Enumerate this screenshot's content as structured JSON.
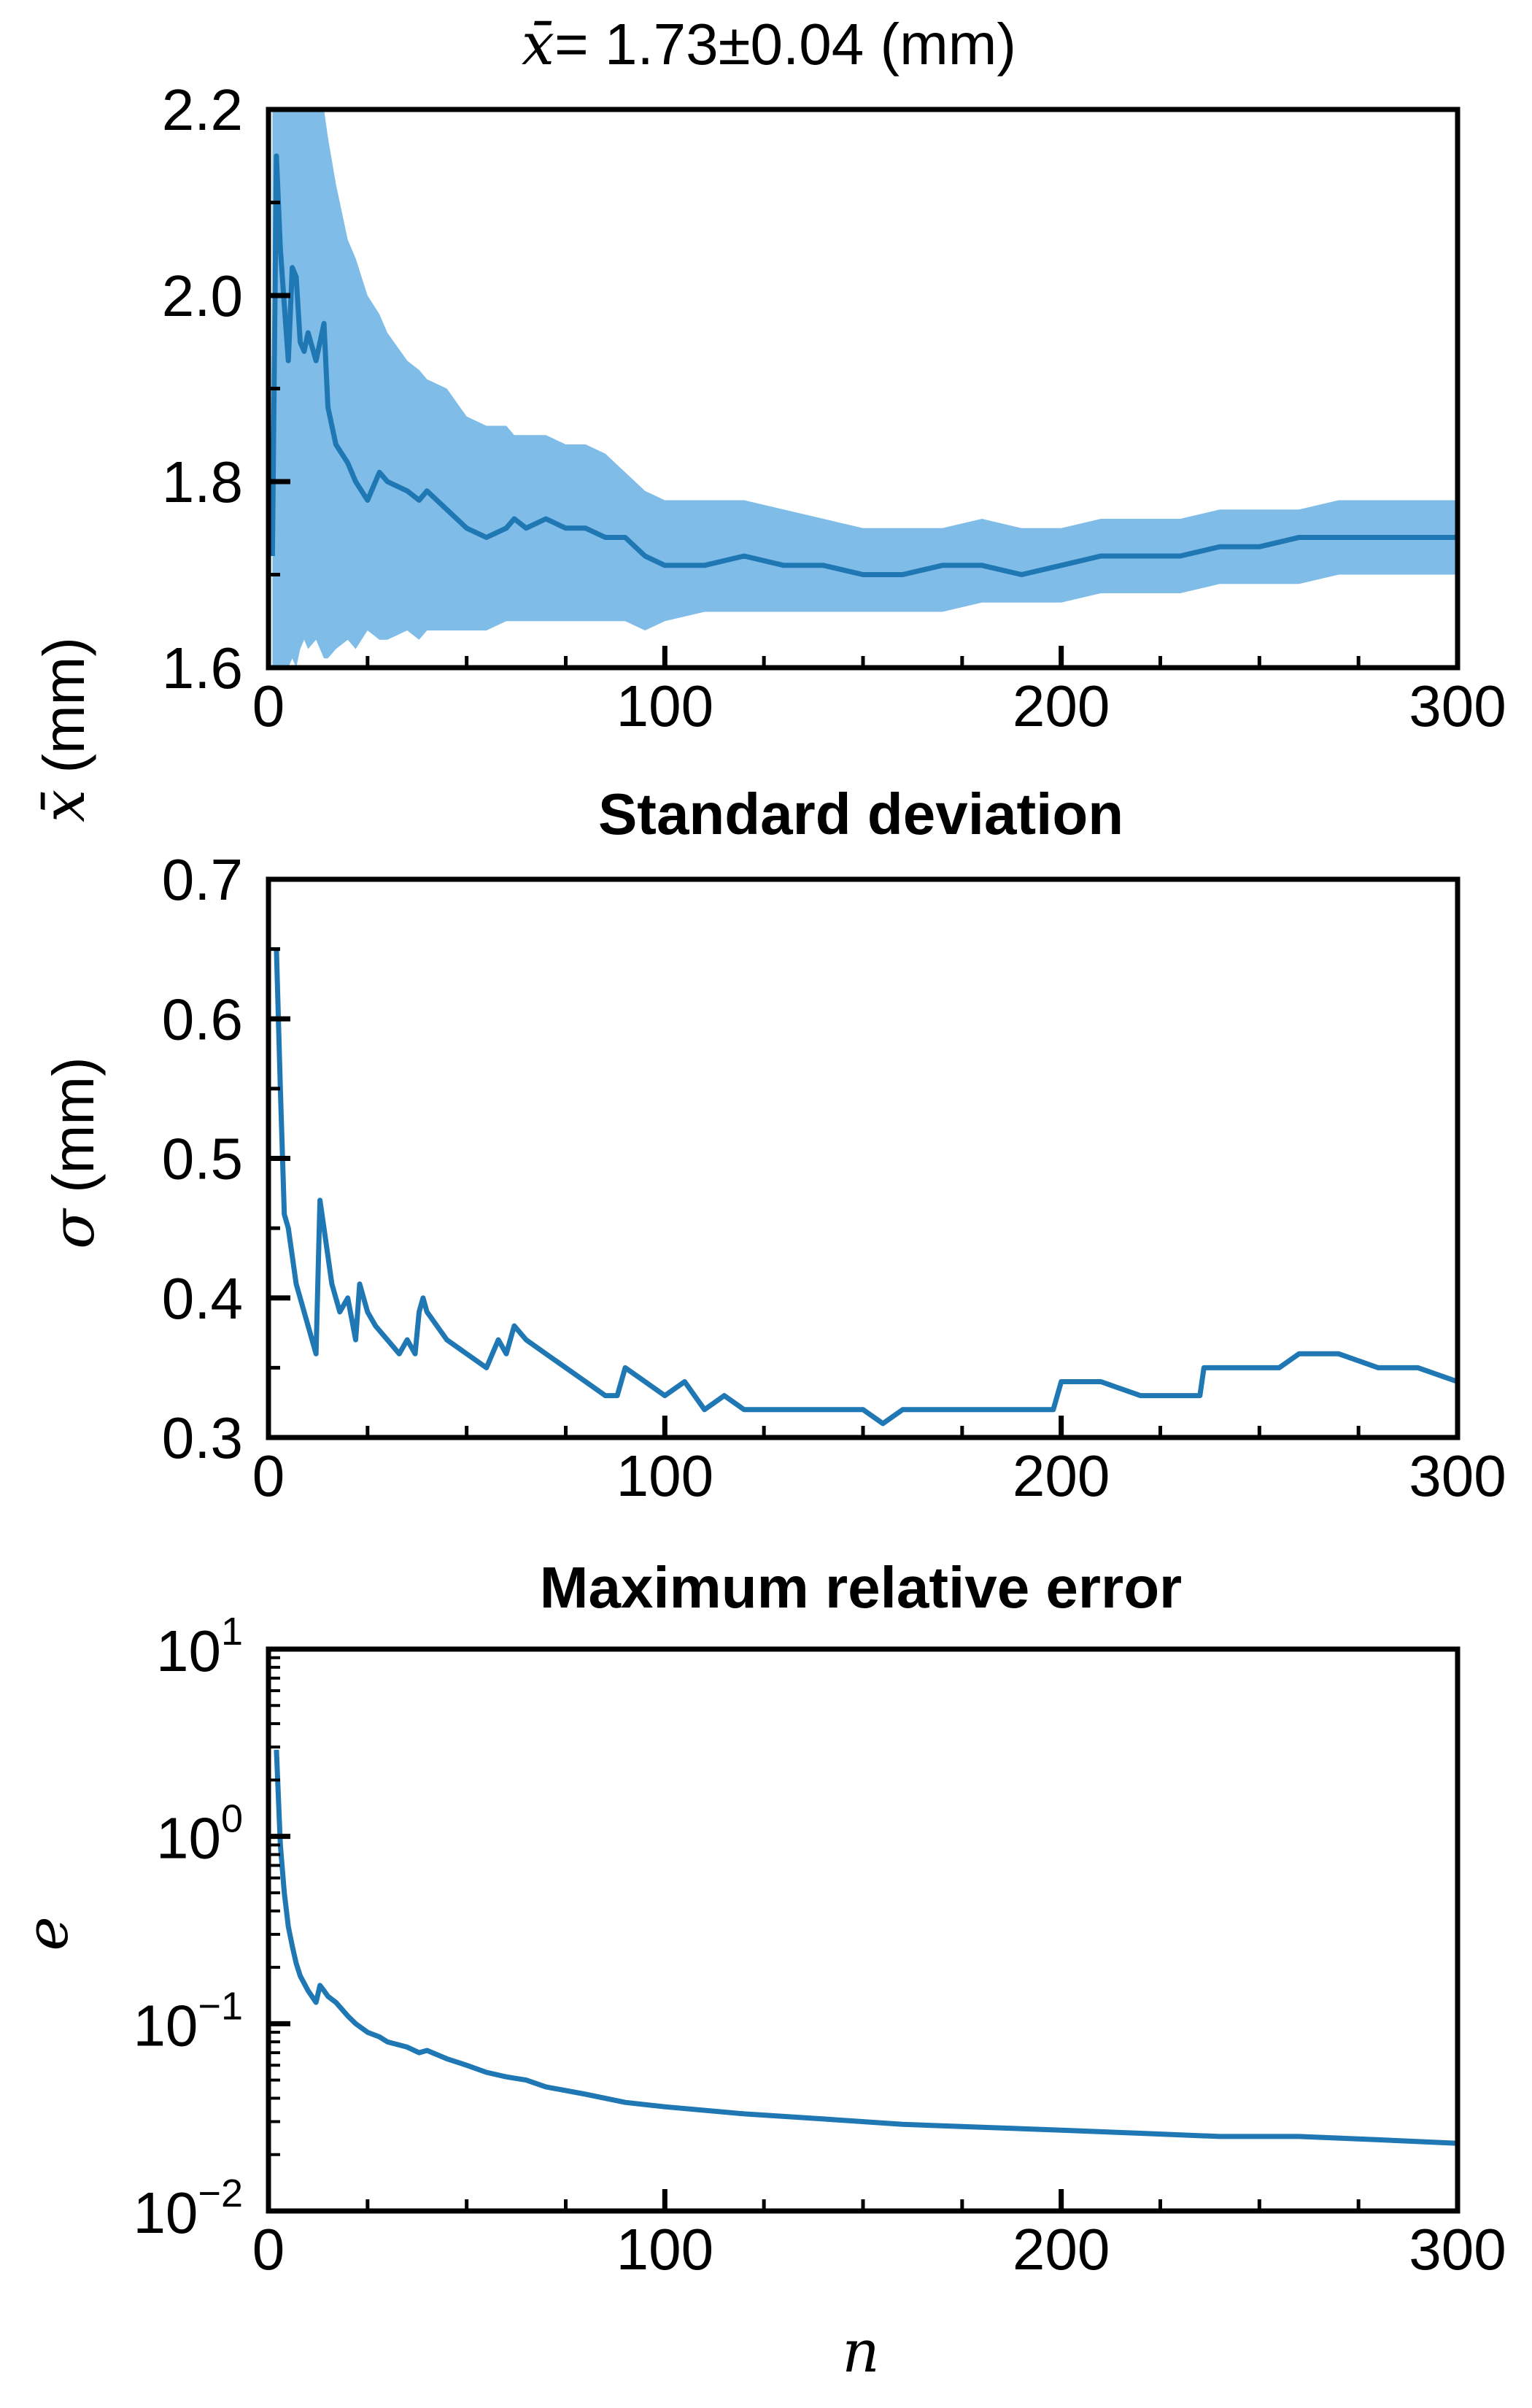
{
  "figure": {
    "xlabel": "n"
  },
  "chart_data": [
    {
      "type": "line",
      "title_symbol": "x̄",
      "title_text": " = 1.73±0.04 (mm)",
      "ylabel_symbol": "x̄",
      "ylabel_text": " (mm)",
      "xlim": [
        0,
        300
      ],
      "ylim": [
        1.6,
        2.2
      ],
      "xticks": [
        0,
        100,
        200,
        300
      ],
      "xtick_labels": [
        "0",
        "100",
        "200",
        "300"
      ],
      "yticks": [
        1.6,
        1.8,
        2.0,
        2.2
      ],
      "ytick_labels": [
        "1.6",
        "1.8",
        "2.0",
        "2.2"
      ],
      "line_color": "#1f77b4",
      "band_color": "#7fbde8",
      "x": [
        1,
        2,
        3,
        4,
        5,
        6,
        7,
        8,
        9,
        10,
        12,
        14,
        15,
        17,
        20,
        22,
        25,
        28,
        30,
        35,
        38,
        40,
        45,
        50,
        55,
        60,
        62,
        65,
        70,
        75,
        80,
        85,
        90,
        95,
        100,
        110,
        120,
        130,
        140,
        150,
        160,
        170,
        180,
        190,
        200,
        210,
        220,
        230,
        240,
        250,
        260,
        270,
        280,
        290,
        300
      ],
      "values": [
        1.72,
        2.15,
        2.05,
        1.99,
        1.93,
        2.03,
        2.02,
        1.95,
        1.94,
        1.96,
        1.93,
        1.97,
        1.88,
        1.84,
        1.82,
        1.8,
        1.78,
        1.81,
        1.8,
        1.79,
        1.78,
        1.79,
        1.77,
        1.75,
        1.74,
        1.75,
        1.76,
        1.75,
        1.76,
        1.75,
        1.75,
        1.74,
        1.74,
        1.72,
        1.71,
        1.71,
        1.72,
        1.71,
        1.71,
        1.7,
        1.7,
        1.71,
        1.71,
        1.7,
        1.71,
        1.72,
        1.72,
        1.72,
        1.73,
        1.73,
        1.74,
        1.74,
        1.74,
        1.74,
        1.74
      ],
      "band_low": [
        1.6,
        1.6,
        1.6,
        1.6,
        1.6,
        1.61,
        1.6,
        1.62,
        1.63,
        1.62,
        1.63,
        1.61,
        1.61,
        1.62,
        1.63,
        1.62,
        1.64,
        1.63,
        1.63,
        1.64,
        1.63,
        1.64,
        1.64,
        1.64,
        1.64,
        1.65,
        1.65,
        1.65,
        1.65,
        1.65,
        1.65,
        1.65,
        1.65,
        1.64,
        1.65,
        1.66,
        1.66,
        1.66,
        1.66,
        1.66,
        1.66,
        1.66,
        1.67,
        1.67,
        1.67,
        1.68,
        1.68,
        1.68,
        1.69,
        1.69,
        1.69,
        1.7,
        1.7,
        1.7,
        1.7
      ],
      "band_high": [
        2.2,
        2.2,
        2.2,
        2.2,
        2.2,
        2.2,
        2.2,
        2.2,
        2.2,
        2.2,
        2.2,
        2.2,
        2.17,
        2.12,
        2.06,
        2.04,
        2.0,
        1.98,
        1.96,
        1.93,
        1.92,
        1.91,
        1.9,
        1.87,
        1.86,
        1.86,
        1.85,
        1.85,
        1.85,
        1.84,
        1.84,
        1.83,
        1.81,
        1.79,
        1.78,
        1.78,
        1.78,
        1.77,
        1.76,
        1.75,
        1.75,
        1.75,
        1.76,
        1.75,
        1.75,
        1.76,
        1.76,
        1.76,
        1.77,
        1.77,
        1.77,
        1.78,
        1.78,
        1.78,
        1.78
      ]
    },
    {
      "type": "line",
      "title": "Standard deviation",
      "ylabel_symbol": "σ",
      "ylabel_text": " (mm)",
      "xlim": [
        0,
        300
      ],
      "ylim": [
        0.3,
        0.7
      ],
      "xticks": [
        0,
        100,
        200,
        300
      ],
      "xtick_labels": [
        "0",
        "100",
        "200",
        "300"
      ],
      "yticks": [
        0.3,
        0.4,
        0.5,
        0.6,
        0.7
      ],
      "ytick_labels": [
        "0.3",
        "0.4",
        "0.5",
        "0.6",
        "0.7"
      ],
      "line_color": "#1f77b4",
      "x": [
        2,
        3,
        4,
        5,
        6,
        7,
        8,
        9,
        10,
        12,
        13,
        14,
        16,
        18,
        20,
        22,
        23,
        25,
        27,
        30,
        33,
        35,
        37,
        38,
        39,
        40,
        45,
        50,
        55,
        58,
        60,
        62,
        65,
        70,
        75,
        80,
        85,
        88,
        90,
        95,
        100,
        105,
        110,
        115,
        120,
        130,
        140,
        150,
        155,
        160,
        165,
        170,
        180,
        190,
        198,
        200,
        210,
        220,
        230,
        235,
        236,
        240,
        250,
        255,
        260,
        270,
        280,
        290,
        300
      ],
      "values": [
        0.65,
        0.55,
        0.46,
        0.45,
        0.43,
        0.41,
        0.4,
        0.39,
        0.38,
        0.36,
        0.47,
        0.45,
        0.41,
        0.39,
        0.4,
        0.37,
        0.41,
        0.39,
        0.38,
        0.37,
        0.36,
        0.37,
        0.36,
        0.39,
        0.4,
        0.39,
        0.37,
        0.36,
        0.35,
        0.37,
        0.36,
        0.38,
        0.37,
        0.36,
        0.35,
        0.34,
        0.33,
        0.33,
        0.35,
        0.34,
        0.33,
        0.34,
        0.32,
        0.33,
        0.32,
        0.32,
        0.32,
        0.32,
        0.31,
        0.32,
        0.32,
        0.32,
        0.32,
        0.32,
        0.32,
        0.34,
        0.34,
        0.33,
        0.33,
        0.33,
        0.35,
        0.35,
        0.35,
        0.35,
        0.36,
        0.36,
        0.35,
        0.35,
        0.34
      ]
    },
    {
      "type": "line",
      "title": "Maximum relative error",
      "ylabel": "e",
      "yscale": "log",
      "xlim": [
        0,
        300
      ],
      "ylim": [
        0.01,
        10
      ],
      "xticks": [
        0,
        100,
        200,
        300
      ],
      "xtick_labels": [
        "0",
        "100",
        "200",
        "300"
      ],
      "yticks": [
        0.01,
        0.1,
        1,
        10
      ],
      "ytick_base": "10",
      "ytick_exponents": [
        "−2",
        "−1",
        "0",
        "1"
      ],
      "line_color": "#1f77b4",
      "x": [
        2,
        3,
        4,
        5,
        6,
        7,
        8,
        10,
        12,
        13,
        14,
        15,
        17,
        20,
        22,
        25,
        28,
        30,
        35,
        38,
        40,
        45,
        50,
        55,
        60,
        65,
        70,
        80,
        90,
        100,
        120,
        140,
        160,
        180,
        200,
        220,
        240,
        260,
        280,
        300
      ],
      "values": [
        2.9,
        0.9,
        0.5,
        0.33,
        0.26,
        0.21,
        0.18,
        0.15,
        0.13,
        0.16,
        0.15,
        0.14,
        0.13,
        0.11,
        0.1,
        0.09,
        0.085,
        0.08,
        0.075,
        0.07,
        0.072,
        0.065,
        0.06,
        0.055,
        0.052,
        0.05,
        0.046,
        0.042,
        0.038,
        0.036,
        0.033,
        0.031,
        0.029,
        0.028,
        0.027,
        0.026,
        0.025,
        0.025,
        0.024,
        0.023
      ]
    }
  ]
}
